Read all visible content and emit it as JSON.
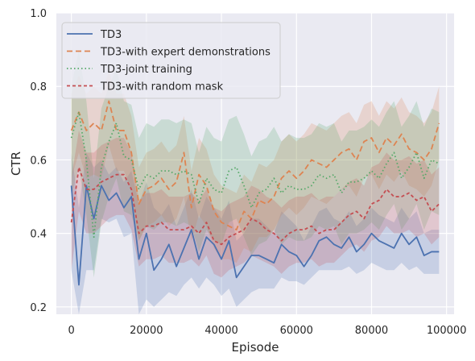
{
  "chart_data": {
    "type": "line",
    "title": "",
    "xlabel": "Episode",
    "ylabel": "CTR",
    "xlim": [
      -4000,
      102000
    ],
    "ylim": [
      0.18,
      1.0
    ],
    "x_ticks": [
      0,
      20000,
      40000,
      60000,
      80000,
      100000
    ],
    "x_tick_labels": [
      "0",
      "20000",
      "40000",
      "60000",
      "80000",
      "100000"
    ],
    "y_ticks": [
      0.2,
      0.4,
      0.6,
      0.8,
      1.0
    ],
    "y_tick_labels": [
      "0.2",
      "0.4",
      "0.6",
      "0.8",
      "1.0"
    ],
    "grid": true,
    "legend_position": "top-left",
    "x": [
      0,
      2000,
      4000,
      6000,
      8000,
      10000,
      12000,
      14000,
      16000,
      18000,
      20000,
      22000,
      24000,
      26000,
      28000,
      30000,
      32000,
      34000,
      36000,
      38000,
      40000,
      42000,
      44000,
      46000,
      48000,
      50000,
      52000,
      54000,
      56000,
      58000,
      60000,
      62000,
      64000,
      66000,
      68000,
      70000,
      72000,
      74000,
      76000,
      78000,
      80000,
      82000,
      84000,
      86000,
      88000,
      90000,
      92000,
      94000,
      96000,
      98000
    ],
    "series": [
      {
        "name": "TD3",
        "color": "#4c72b0",
        "dash": "solid",
        "values": [
          0.53,
          0.26,
          0.53,
          0.44,
          0.53,
          0.49,
          0.51,
          0.47,
          0.5,
          0.33,
          0.4,
          0.3,
          0.33,
          0.37,
          0.31,
          0.36,
          0.41,
          0.33,
          0.39,
          0.37,
          0.33,
          0.38,
          0.28,
          0.31,
          0.34,
          0.34,
          0.33,
          0.32,
          0.37,
          0.35,
          0.34,
          0.31,
          0.34,
          0.38,
          0.39,
          0.37,
          0.36,
          0.39,
          0.35,
          0.37,
          0.4,
          0.38,
          0.37,
          0.36,
          0.4,
          0.37,
          0.39,
          0.34,
          0.35,
          0.35
        ],
        "lower": [
          0.3,
          0.18,
          0.3,
          0.3,
          0.44,
          0.43,
          0.44,
          0.39,
          0.4,
          0.18,
          0.22,
          0.2,
          0.22,
          0.24,
          0.23,
          0.26,
          0.28,
          0.25,
          0.28,
          0.26,
          0.23,
          0.25,
          0.2,
          0.22,
          0.24,
          0.25,
          0.25,
          0.25,
          0.28,
          0.27,
          0.27,
          0.26,
          0.28,
          0.3,
          0.3,
          0.3,
          0.3,
          0.31,
          0.29,
          0.3,
          0.32,
          0.31,
          0.3,
          0.3,
          0.32,
          0.3,
          0.31,
          0.29,
          0.29,
          0.29
        ],
        "upper": [
          0.62,
          0.47,
          0.62,
          0.58,
          0.6,
          0.56,
          0.58,
          0.54,
          0.57,
          0.48,
          0.54,
          0.47,
          0.45,
          0.48,
          0.42,
          0.47,
          0.52,
          0.44,
          0.5,
          0.47,
          0.44,
          0.49,
          0.38,
          0.4,
          0.44,
          0.44,
          0.42,
          0.4,
          0.46,
          0.44,
          0.42,
          0.38,
          0.42,
          0.46,
          0.47,
          0.44,
          0.43,
          0.46,
          0.42,
          0.44,
          0.47,
          0.45,
          0.44,
          0.43,
          0.47,
          0.44,
          0.46,
          0.4,
          0.41,
          0.41
        ]
      },
      {
        "name": "TD3-with expert demonstrations",
        "color": "#dd8452",
        "dash": "7,4",
        "values": [
          0.68,
          0.73,
          0.68,
          0.7,
          0.68,
          0.76,
          0.68,
          0.68,
          0.62,
          0.48,
          0.52,
          0.53,
          0.55,
          0.52,
          0.54,
          0.62,
          0.47,
          0.56,
          0.53,
          0.46,
          0.43,
          0.42,
          0.41,
          0.46,
          0.44,
          0.49,
          0.48,
          0.5,
          0.55,
          0.57,
          0.55,
          0.57,
          0.6,
          0.59,
          0.58,
          0.6,
          0.62,
          0.63,
          0.6,
          0.65,
          0.66,
          0.62,
          0.66,
          0.64,
          0.67,
          0.63,
          0.62,
          0.6,
          0.63,
          0.7
        ],
        "lower": [
          0.55,
          0.62,
          0.55,
          0.56,
          0.55,
          0.64,
          0.57,
          0.57,
          0.52,
          0.38,
          0.42,
          0.43,
          0.45,
          0.42,
          0.44,
          0.5,
          0.38,
          0.45,
          0.42,
          0.36,
          0.33,
          0.33,
          0.32,
          0.36,
          0.35,
          0.39,
          0.39,
          0.41,
          0.45,
          0.47,
          0.45,
          0.47,
          0.5,
          0.49,
          0.48,
          0.5,
          0.52,
          0.53,
          0.5,
          0.55,
          0.56,
          0.52,
          0.56,
          0.54,
          0.57,
          0.53,
          0.52,
          0.5,
          0.53,
          0.6
        ],
        "upper": [
          0.78,
          0.83,
          0.78,
          0.8,
          0.78,
          0.84,
          0.78,
          0.78,
          0.72,
          0.58,
          0.62,
          0.63,
          0.65,
          0.62,
          0.64,
          0.72,
          0.57,
          0.66,
          0.63,
          0.56,
          0.53,
          0.52,
          0.51,
          0.56,
          0.54,
          0.59,
          0.58,
          0.6,
          0.65,
          0.67,
          0.65,
          0.67,
          0.7,
          0.69,
          0.68,
          0.7,
          0.72,
          0.73,
          0.7,
          0.75,
          0.76,
          0.72,
          0.76,
          0.74,
          0.77,
          0.73,
          0.72,
          0.7,
          0.73,
          0.8
        ]
      },
      {
        "name": "TD3-joint training",
        "color": "#55a868",
        "dash": "1.5,3",
        "values": [
          0.66,
          0.73,
          0.6,
          0.39,
          0.58,
          0.65,
          0.7,
          0.61,
          0.6,
          0.52,
          0.56,
          0.55,
          0.57,
          0.57,
          0.56,
          0.57,
          0.56,
          0.48,
          0.55,
          0.52,
          0.51,
          0.57,
          0.58,
          0.53,
          0.47,
          0.51,
          0.52,
          0.55,
          0.51,
          0.53,
          0.52,
          0.52,
          0.53,
          0.56,
          0.55,
          0.56,
          0.51,
          0.54,
          0.54,
          0.55,
          0.57,
          0.55,
          0.59,
          0.62,
          0.55,
          0.58,
          0.62,
          0.55,
          0.6,
          0.59
        ],
        "lower": [
          0.5,
          0.58,
          0.45,
          0.28,
          0.43,
          0.5,
          0.55,
          0.46,
          0.45,
          0.38,
          0.42,
          0.41,
          0.43,
          0.43,
          0.42,
          0.43,
          0.42,
          0.35,
          0.41,
          0.38,
          0.37,
          0.43,
          0.44,
          0.39,
          0.34,
          0.37,
          0.38,
          0.41,
          0.37,
          0.39,
          0.38,
          0.38,
          0.39,
          0.42,
          0.41,
          0.42,
          0.37,
          0.4,
          0.4,
          0.41,
          0.43,
          0.41,
          0.45,
          0.48,
          0.41,
          0.44,
          0.48,
          0.41,
          0.46,
          0.45
        ],
        "upper": [
          0.8,
          0.9,
          0.76,
          0.55,
          0.74,
          0.8,
          0.85,
          0.76,
          0.75,
          0.66,
          0.7,
          0.69,
          0.71,
          0.71,
          0.7,
          0.71,
          0.7,
          0.62,
          0.69,
          0.66,
          0.65,
          0.71,
          0.72,
          0.67,
          0.61,
          0.65,
          0.66,
          0.69,
          0.65,
          0.67,
          0.66,
          0.66,
          0.67,
          0.7,
          0.69,
          0.7,
          0.65,
          0.68,
          0.68,
          0.69,
          0.71,
          0.69,
          0.73,
          0.76,
          0.69,
          0.72,
          0.76,
          0.69,
          0.74,
          0.73
        ]
      },
      {
        "name": "TD3-with random mask",
        "color": "#c44e52",
        "dash": "4,3",
        "values": [
          0.43,
          0.58,
          0.52,
          0.52,
          0.54,
          0.55,
          0.56,
          0.56,
          0.52,
          0.4,
          0.42,
          0.42,
          0.43,
          0.41,
          0.41,
          0.41,
          0.42,
          0.4,
          0.43,
          0.38,
          0.37,
          0.39,
          0.4,
          0.41,
          0.44,
          0.43,
          0.41,
          0.4,
          0.38,
          0.4,
          0.41,
          0.41,
          0.42,
          0.4,
          0.41,
          0.41,
          0.43,
          0.45,
          0.46,
          0.44,
          0.48,
          0.49,
          0.52,
          0.5,
          0.5,
          0.51,
          0.49,
          0.5,
          0.46,
          0.48
        ],
        "lower": [
          0.3,
          0.46,
          0.4,
          0.4,
          0.42,
          0.44,
          0.45,
          0.45,
          0.41,
          0.31,
          0.33,
          0.33,
          0.34,
          0.32,
          0.32,
          0.32,
          0.33,
          0.31,
          0.34,
          0.29,
          0.28,
          0.3,
          0.31,
          0.32,
          0.34,
          0.33,
          0.32,
          0.31,
          0.29,
          0.31,
          0.32,
          0.32,
          0.33,
          0.31,
          0.32,
          0.32,
          0.34,
          0.36,
          0.37,
          0.35,
          0.38,
          0.39,
          0.42,
          0.4,
          0.4,
          0.41,
          0.39,
          0.4,
          0.37,
          0.39
        ],
        "upper": [
          0.55,
          0.68,
          0.62,
          0.62,
          0.64,
          0.65,
          0.66,
          0.66,
          0.62,
          0.49,
          0.51,
          0.51,
          0.52,
          0.5,
          0.5,
          0.5,
          0.51,
          0.49,
          0.52,
          0.47,
          0.46,
          0.48,
          0.49,
          0.5,
          0.53,
          0.52,
          0.5,
          0.49,
          0.47,
          0.49,
          0.5,
          0.5,
          0.51,
          0.49,
          0.5,
          0.5,
          0.52,
          0.54,
          0.55,
          0.53,
          0.58,
          0.59,
          0.62,
          0.6,
          0.6,
          0.61,
          0.59,
          0.6,
          0.56,
          0.58
        ]
      }
    ]
  }
}
